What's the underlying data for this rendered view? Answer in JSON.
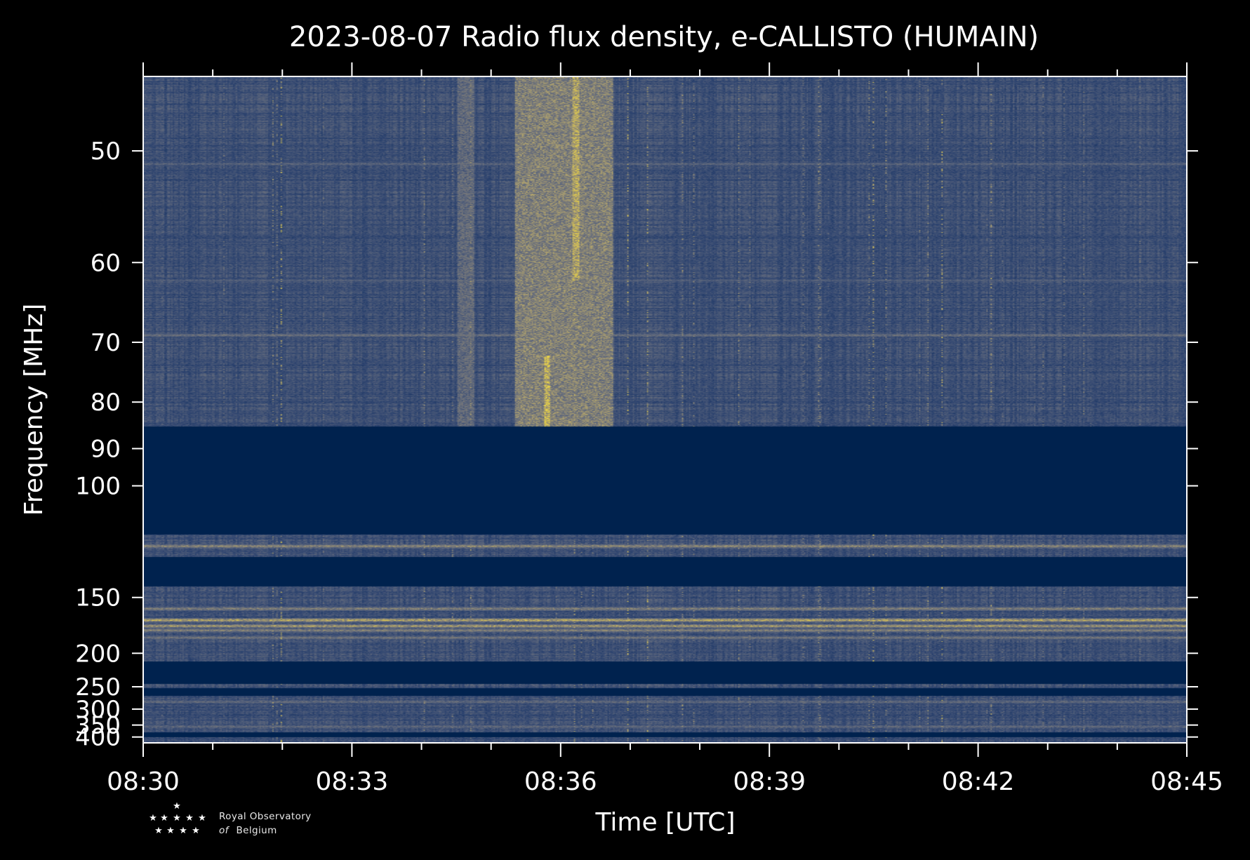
{
  "chart_data": {
    "type": "heatmap",
    "title": "2023-08-07 Radio flux density, e-CALLISTO (HUMAIN)",
    "xlabel": "Time [UTC]",
    "ylabel": "Frequency [MHz]",
    "x_ticks": [
      "08:30",
      "08:33",
      "08:36",
      "08:39",
      "08:42",
      "08:45"
    ],
    "x_minutes": [
      0,
      3,
      6,
      9,
      12,
      15
    ],
    "xlim": [
      "08:30",
      "08:45"
    ],
    "y_ticks": [
      50,
      60,
      70,
      80,
      90,
      100,
      150,
      200,
      250,
      300,
      350,
      400
    ],
    "y_scale": "reciprocal (1/f)",
    "ylim": [
      45,
      430
    ],
    "colormap": "cividis",
    "grid": false,
    "colors": {
      "background": "#000000",
      "low": "#00224e",
      "mid": "#7b7b78",
      "high": "#fee838"
    },
    "masked_bands_mhz": [
      [
        85,
        117
      ],
      [
        127,
        143
      ],
      [
        210,
        245
      ],
      [
        253,
        268
      ],
      [
        380,
        400
      ]
    ],
    "noise_bands_mhz": [
      [
        45,
        85
      ],
      [
        117,
        127
      ],
      [
        143,
        210
      ],
      [
        245,
        253
      ],
      [
        268,
        380
      ],
      [
        400,
        430
      ]
    ],
    "persistent_emission_lines_mhz": [
      {
        "freq": 51,
        "level": 0.45
      },
      {
        "freq": 62,
        "level": 0.4
      },
      {
        "freq": 69,
        "level": 0.55
      },
      {
        "freq": 122,
        "level": 0.75
      },
      {
        "freq": 158,
        "level": 0.7
      },
      {
        "freq": 167,
        "level": 0.95
      },
      {
        "freq": 172,
        "level": 0.85
      },
      {
        "freq": 176,
        "level": 0.7
      },
      {
        "freq": 183,
        "level": 0.6
      },
      {
        "freq": 282,
        "level": 0.5
      },
      {
        "freq": 356,
        "level": 0.5
      }
    ],
    "burst_events": [
      {
        "start": "08:34:30",
        "end": "08:34:45",
        "freq_range_mhz": [
          45,
          85
        ],
        "level": 0.5
      },
      {
        "start": "08:35:20",
        "end": "08:36:45",
        "freq_range_mhz": [
          45,
          85
        ],
        "level": 0.7
      },
      {
        "start": "08:35:45",
        "end": "08:35:50",
        "freq_range_mhz": [
          72,
          85
        ],
        "level": 1.0
      },
      {
        "start": "08:36:10",
        "end": "08:36:15",
        "freq_range_mhz": [
          45,
          62
        ],
        "level": 0.9
      }
    ]
  },
  "logo": {
    "line1": "Royal Observatory",
    "line2_italic": "of",
    "line2_rest": "Belgium"
  }
}
